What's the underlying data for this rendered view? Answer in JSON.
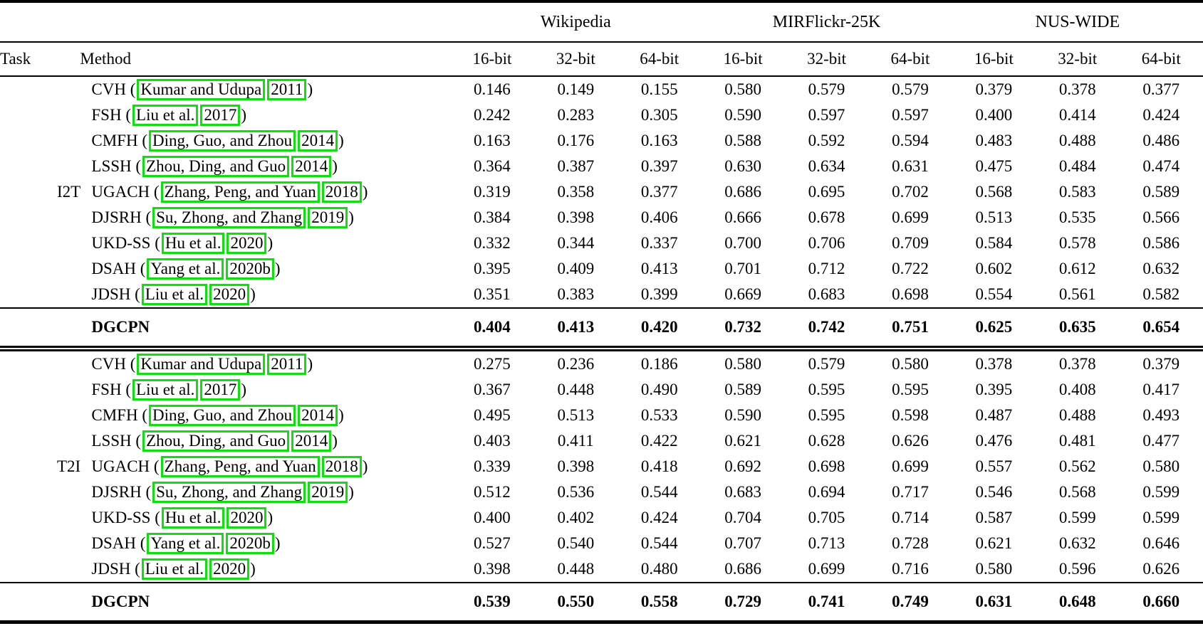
{
  "table": {
    "header": {
      "task": "Task",
      "method": "Method",
      "datasets": [
        "Wikipedia",
        "MIRFlickr-25K",
        "NUS-WIDE"
      ],
      "bits": [
        "16-bit",
        "32-bit",
        "64-bit"
      ]
    },
    "citation_box_color": "#0de00d",
    "sections": [
      {
        "task": "I2T",
        "rows": [
          {
            "name": "CVH",
            "cite_author": "Kumar and Udupa",
            "cite_year": "2011",
            "values": [
              "0.146",
              "0.149",
              "0.155",
              "0.580",
              "0.579",
              "0.579",
              "0.379",
              "0.378",
              "0.377"
            ]
          },
          {
            "name": "FSH",
            "cite_author": "Liu et al.",
            "cite_year": "2017",
            "values": [
              "0.242",
              "0.283",
              "0.305",
              "0.590",
              "0.597",
              "0.597",
              "0.400",
              "0.414",
              "0.424"
            ]
          },
          {
            "name": "CMFH",
            "cite_author": "Ding, Guo, and Zhou",
            "cite_year": "2014",
            "values": [
              "0.163",
              "0.176",
              "0.163",
              "0.588",
              "0.592",
              "0.594",
              "0.483",
              "0.488",
              "0.486"
            ]
          },
          {
            "name": "LSSH",
            "cite_author": "Zhou, Ding, and Guo",
            "cite_year": "2014",
            "values": [
              "0.364",
              "0.387",
              "0.397",
              "0.630",
              "0.634",
              "0.631",
              "0.475",
              "0.484",
              "0.474"
            ]
          },
          {
            "name": "UGACH",
            "cite_author": "Zhang, Peng, and Yuan",
            "cite_year": "2018",
            "values": [
              "0.319",
              "0.358",
              "0.377",
              "0.686",
              "0.695",
              "0.702",
              "0.568",
              "0.583",
              "0.589"
            ]
          },
          {
            "name": "DJSRH",
            "cite_author": "Su, Zhong, and Zhang",
            "cite_year": "2019",
            "values": [
              "0.384",
              "0.398",
              "0.406",
              "0.666",
              "0.678",
              "0.699",
              "0.513",
              "0.535",
              "0.566"
            ]
          },
          {
            "name": "UKD-SS",
            "cite_author": "Hu et al.",
            "cite_year": "2020",
            "values": [
              "0.332",
              "0.344",
              "0.337",
              "0.700",
              "0.706",
              "0.709",
              "0.584",
              "0.578",
              "0.586"
            ]
          },
          {
            "name": "DSAH",
            "cite_author": "Yang et al.",
            "cite_year": "2020b",
            "values": [
              "0.395",
              "0.409",
              "0.413",
              "0.701",
              "0.712",
              "0.722",
              "0.602",
              "0.612",
              "0.632"
            ]
          },
          {
            "name": "JDSH",
            "cite_author": "Liu et al.",
            "cite_year": "2020",
            "values": [
              "0.351",
              "0.383",
              "0.399",
              "0.669",
              "0.683",
              "0.698",
              "0.554",
              "0.561",
              "0.582"
            ]
          }
        ],
        "highlight": {
          "name": "DGCPN",
          "values": [
            "0.404",
            "0.413",
            "0.420",
            "0.732",
            "0.742",
            "0.751",
            "0.625",
            "0.635",
            "0.654"
          ]
        }
      },
      {
        "task": "T2I",
        "rows": [
          {
            "name": "CVH",
            "cite_author": "Kumar and Udupa",
            "cite_year": "2011",
            "values": [
              "0.275",
              "0.236",
              "0.186",
              "0.580",
              "0.579",
              "0.580",
              "0.378",
              "0.378",
              "0.379"
            ]
          },
          {
            "name": "FSH",
            "cite_author": "Liu et al.",
            "cite_year": "2017",
            "values": [
              "0.367",
              "0.448",
              "0.490",
              "0.589",
              "0.595",
              "0.595",
              "0.395",
              "0.408",
              "0.417"
            ]
          },
          {
            "name": "CMFH",
            "cite_author": "Ding, Guo, and Zhou",
            "cite_year": "2014",
            "values": [
              "0.495",
              "0.513",
              "0.533",
              "0.590",
              "0.595",
              "0.598",
              "0.487",
              "0.488",
              "0.493"
            ]
          },
          {
            "name": "LSSH",
            "cite_author": "Zhou, Ding, and Guo",
            "cite_year": "2014",
            "values": [
              "0.403",
              "0.411",
              "0.422",
              "0.621",
              "0.628",
              "0.626",
              "0.476",
              "0.481",
              "0.477"
            ]
          },
          {
            "name": "UGACH",
            "cite_author": "Zhang, Peng, and Yuan",
            "cite_year": "2018",
            "values": [
              "0.339",
              "0.398",
              "0.418",
              "0.692",
              "0.698",
              "0.699",
              "0.557",
              "0.562",
              "0.580"
            ]
          },
          {
            "name": "DJSRH",
            "cite_author": "Su, Zhong, and Zhang",
            "cite_year": "2019",
            "values": [
              "0.512",
              "0.536",
              "0.544",
              "0.683",
              "0.694",
              "0.717",
              "0.546",
              "0.568",
              "0.599"
            ]
          },
          {
            "name": "UKD-SS",
            "cite_author": "Hu et al.",
            "cite_year": "2020",
            "values": [
              "0.400",
              "0.402",
              "0.424",
              "0.704",
              "0.705",
              "0.714",
              "0.587",
              "0.599",
              "0.599"
            ]
          },
          {
            "name": "DSAH",
            "cite_author": "Yang et al.",
            "cite_year": "2020b",
            "values": [
              "0.527",
              "0.540",
              "0.544",
              "0.707",
              "0.713",
              "0.728",
              "0.621",
              "0.632",
              "0.646"
            ]
          },
          {
            "name": "JDSH",
            "cite_author": "Liu et al.",
            "cite_year": "2020",
            "values": [
              "0.398",
              "0.448",
              "0.480",
              "0.686",
              "0.699",
              "0.716",
              "0.580",
              "0.596",
              "0.626"
            ]
          }
        ],
        "highlight": {
          "name": "DGCPN",
          "values": [
            "0.539",
            "0.550",
            "0.558",
            "0.729",
            "0.741",
            "0.749",
            "0.631",
            "0.648",
            "0.660"
          ]
        }
      }
    ]
  }
}
